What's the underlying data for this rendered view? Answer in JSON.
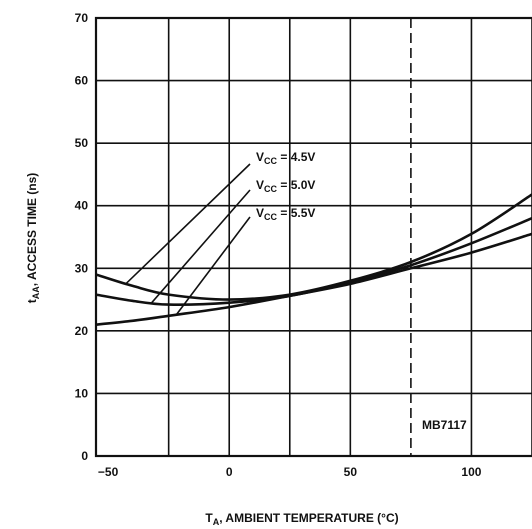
{
  "chart_data": {
    "type": "line",
    "xlabel": {
      "main": "T",
      "sub": "A",
      "rest": ", AMBIENT TEMPERATURE (°C)"
    },
    "ylabel": {
      "main": "t",
      "sub": "AA",
      "rest": ", ACCESS TIME (ns)"
    },
    "xlim": [
      -55,
      125
    ],
    "ylim": [
      0,
      70
    ],
    "xticks": [
      -50,
      0,
      50,
      100
    ],
    "xtick_labels": [
      "−50",
      "0",
      "50",
      "100"
    ],
    "yticks": [
      0,
      10,
      20,
      30,
      40,
      50,
      60,
      70
    ],
    "grid": true,
    "series": [
      {
        "name": "V_CC = 4.5V",
        "label_main": "V",
        "label_sub": "CC",
        "label_rest": " = 4.5V",
        "x": [
          -55,
          -40,
          -25,
          0,
          25,
          50,
          75,
          100,
          125
        ],
        "y": [
          29.0,
          27.2,
          25.8,
          25.0,
          25.8,
          28.0,
          31.0,
          35.5,
          41.8
        ]
      },
      {
        "name": "V_CC = 5.0V",
        "label_main": "V",
        "label_sub": "CC",
        "label_rest": " = 5.0V",
        "x": [
          -55,
          -40,
          -25,
          0,
          25,
          50,
          75,
          100,
          125
        ],
        "y": [
          25.8,
          24.8,
          24.2,
          24.5,
          25.6,
          27.8,
          30.5,
          34.0,
          38.0
        ]
      },
      {
        "name": "V_CC = 5.5V",
        "label_main": "V",
        "label_sub": "CC",
        "label_rest": " = 5.5V",
        "x": [
          -55,
          -40,
          -25,
          0,
          25,
          50,
          75,
          100,
          125
        ],
        "y": [
          21.0,
          21.6,
          22.4,
          23.8,
          25.6,
          27.5,
          30.0,
          32.5,
          35.5
        ]
      }
    ],
    "annotations": [
      "MB7117"
    ]
  }
}
